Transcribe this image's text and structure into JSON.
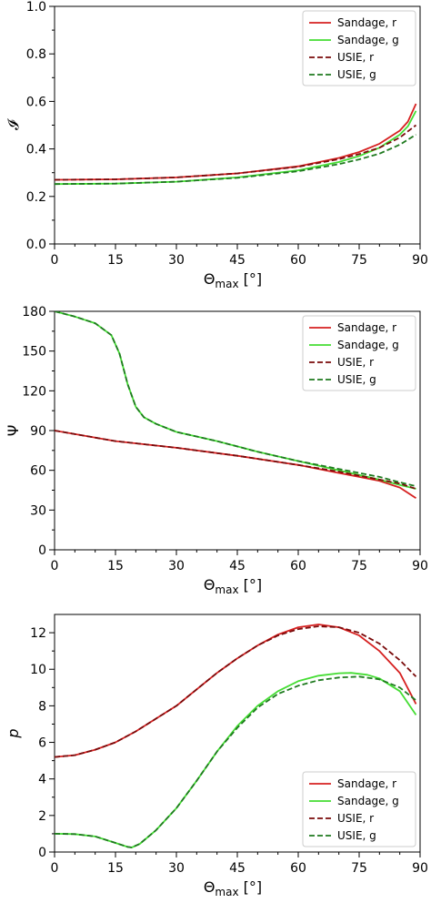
{
  "chart_data": [
    {
      "type": "line",
      "xlabel": "Θmax [°]",
      "xlabel_main": "Θ",
      "xlabel_sub": "max",
      "xlabel_unit": " [°]",
      "ylabel": "𝓘",
      "xlim": [
        0,
        90
      ],
      "ylim": [
        0.0,
        1.0
      ],
      "xticks": [
        "0",
        "15",
        "30",
        "45",
        "60",
        "75",
        "90"
      ],
      "yticks": [
        "0.0",
        "0.2",
        "0.4",
        "0.6",
        "0.8",
        "1.0"
      ],
      "legend_position": "top-right",
      "series": [
        {
          "name": "Sandage, r",
          "style": "solid",
          "color": "#d62020",
          "x": [
            0,
            15,
            30,
            45,
            60,
            70,
            75,
            80,
            85,
            87,
            89
          ],
          "y": [
            0.27,
            0.272,
            0.28,
            0.297,
            0.327,
            0.362,
            0.387,
            0.422,
            0.477,
            0.515,
            0.59
          ]
        },
        {
          "name": "Sandage, g",
          "style": "solid",
          "color": "#44dd33",
          "x": [
            0,
            15,
            30,
            45,
            60,
            70,
            75,
            80,
            85,
            87,
            89
          ],
          "y": [
            0.252,
            0.254,
            0.262,
            0.28,
            0.31,
            0.345,
            0.37,
            0.405,
            0.46,
            0.495,
            0.56
          ]
        },
        {
          "name": "USIE, r",
          "style": "dashed",
          "color": "#7a0a0a",
          "x": [
            0,
            15,
            30,
            45,
            60,
            70,
            75,
            80,
            85,
            89
          ],
          "y": [
            0.27,
            0.272,
            0.28,
            0.297,
            0.325,
            0.357,
            0.378,
            0.405,
            0.448,
            0.5
          ]
        },
        {
          "name": "USIE, g",
          "style": "dashed",
          "color": "#1f7a1f",
          "x": [
            0,
            15,
            30,
            45,
            60,
            70,
            75,
            80,
            85,
            89
          ],
          "y": [
            0.252,
            0.254,
            0.262,
            0.278,
            0.306,
            0.336,
            0.356,
            0.38,
            0.418,
            0.46
          ]
        }
      ]
    },
    {
      "type": "line",
      "xlabel": "Θmax [°]",
      "xlabel_main": "Θ",
      "xlabel_sub": "max",
      "xlabel_unit": " [°]",
      "ylabel": "Ψ",
      "xlim": [
        0,
        90
      ],
      "ylim": [
        0,
        180
      ],
      "xticks": [
        "0",
        "15",
        "30",
        "45",
        "60",
        "75",
        "90"
      ],
      "yticks": [
        "0",
        "30",
        "60",
        "90",
        "120",
        "150",
        "180"
      ],
      "legend_position": "top-right",
      "series": [
        {
          "name": "Sandage, r",
          "style": "solid",
          "color": "#d62020",
          "x": [
            0,
            15,
            30,
            45,
            60,
            70,
            75,
            80,
            85,
            89
          ],
          "y": [
            90,
            82,
            77,
            71,
            64,
            58,
            55,
            52,
            47,
            39
          ]
        },
        {
          "name": "Sandage, g",
          "style": "solid",
          "color": "#44dd33",
          "x": [
            0,
            5,
            10,
            14,
            16,
            18,
            20,
            22,
            25,
            30,
            40,
            50,
            60,
            70,
            80,
            85,
            89
          ],
          "y": [
            180,
            176,
            171,
            162,
            148,
            125,
            108,
            100,
            95,
            89,
            82,
            74,
            67,
            60,
            53,
            49,
            46
          ]
        },
        {
          "name": "USIE, r",
          "style": "dashed",
          "color": "#7a0a0a",
          "x": [
            0,
            15,
            30,
            45,
            60,
            70,
            75,
            80,
            85,
            89
          ],
          "y": [
            90,
            82,
            77,
            71,
            64,
            59,
            56,
            53,
            50,
            46
          ]
        },
        {
          "name": "USIE, g",
          "style": "dashed",
          "color": "#1f7a1f",
          "x": [
            0,
            5,
            10,
            14,
            16,
            18,
            20,
            22,
            25,
            30,
            40,
            50,
            60,
            70,
            80,
            85,
            89
          ],
          "y": [
            180,
            176,
            171,
            162,
            148,
            125,
            108,
            100,
            95,
            89,
            82,
            74,
            67,
            61,
            55,
            51,
            48
          ]
        }
      ]
    },
    {
      "type": "line",
      "xlabel": "Θmax [°]",
      "xlabel_main": "Θ",
      "xlabel_sub": "max",
      "xlabel_unit": " [°]",
      "ylabel": "p",
      "xlim": [
        0,
        90
      ],
      "ylim": [
        0,
        13
      ],
      "xticks": [
        "0",
        "15",
        "30",
        "45",
        "60",
        "75",
        "90"
      ],
      "yticks": [
        "0",
        "2",
        "4",
        "6",
        "8",
        "10",
        "12"
      ],
      "legend_position": "bottom-right",
      "series": [
        {
          "name": "Sandage, r",
          "style": "solid",
          "color": "#d62020",
          "x": [
            0,
            5,
            10,
            15,
            20,
            25,
            30,
            35,
            40,
            45,
            50,
            55,
            60,
            65,
            70,
            75,
            80,
            85,
            89
          ],
          "y": [
            5.2,
            5.3,
            5.6,
            6.0,
            6.6,
            7.3,
            8.0,
            8.9,
            9.8,
            10.6,
            11.3,
            11.9,
            12.3,
            12.45,
            12.3,
            11.85,
            11.0,
            9.8,
            8.1
          ]
        },
        {
          "name": "Sandage, g",
          "style": "solid",
          "color": "#44dd33",
          "x": [
            0,
            5,
            10,
            15,
            18,
            19,
            21,
            25,
            30,
            35,
            40,
            45,
            50,
            55,
            60,
            65,
            70,
            73,
            77,
            80,
            85,
            89
          ],
          "y": [
            1.0,
            0.98,
            0.85,
            0.5,
            0.28,
            0.25,
            0.45,
            1.2,
            2.4,
            3.9,
            5.5,
            6.9,
            8.0,
            8.8,
            9.35,
            9.65,
            9.78,
            9.8,
            9.7,
            9.5,
            8.8,
            7.5
          ]
        },
        {
          "name": "USIE, r",
          "style": "dashed",
          "color": "#7a0a0a",
          "x": [
            0,
            5,
            10,
            15,
            20,
            25,
            30,
            35,
            40,
            45,
            50,
            55,
            60,
            65,
            70,
            75,
            80,
            85,
            89
          ],
          "y": [
            5.2,
            5.3,
            5.6,
            6.0,
            6.6,
            7.3,
            8.0,
            8.9,
            9.8,
            10.6,
            11.3,
            11.85,
            12.2,
            12.35,
            12.3,
            12.0,
            11.4,
            10.5,
            9.6
          ]
        },
        {
          "name": "USIE, g",
          "style": "dashed",
          "color": "#1f7a1f",
          "x": [
            0,
            5,
            10,
            15,
            18,
            19,
            21,
            25,
            30,
            35,
            40,
            45,
            50,
            55,
            60,
            65,
            70,
            75,
            80,
            85,
            89
          ],
          "y": [
            1.0,
            0.98,
            0.85,
            0.5,
            0.28,
            0.25,
            0.45,
            1.2,
            2.4,
            3.9,
            5.5,
            6.8,
            7.9,
            8.65,
            9.1,
            9.4,
            9.55,
            9.6,
            9.45,
            9.0,
            8.3
          ]
        }
      ]
    }
  ]
}
